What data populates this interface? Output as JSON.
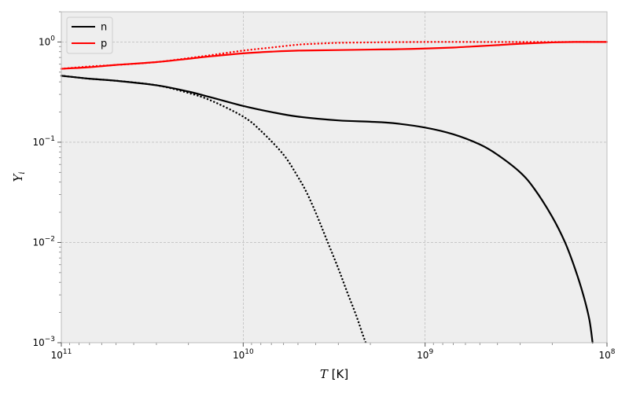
{
  "chart_data": {
    "type": "line",
    "title": "",
    "xlabel": "T",
    "xlabel_unit": "[K]",
    "ylabel": "Y",
    "ylabel_sub": "i",
    "xscale": "log",
    "yscale": "log",
    "x_reversed": true,
    "xlim": [
      100000000000,
      100000000
    ],
    "ylim": [
      0.001,
      2
    ],
    "x_ticks": [
      {
        "value": 100000000000,
        "base": "10",
        "exp": "11"
      },
      {
        "value": 10000000000,
        "base": "10",
        "exp": "10"
      },
      {
        "value": 1000000000,
        "base": "10",
        "exp": "9"
      },
      {
        "value": 100000000,
        "base": "10",
        "exp": "8"
      }
    ],
    "y_ticks": [
      {
        "value": 0.001,
        "base": "10",
        "exp": "−3"
      },
      {
        "value": 0.01,
        "base": "10",
        "exp": "−2"
      },
      {
        "value": 0.1,
        "base": "10",
        "exp": "−1"
      },
      {
        "value": 1,
        "base": "10",
        "exp": "0"
      }
    ],
    "grid": true,
    "legend_position": "top-left",
    "colors": {
      "n": "#000000",
      "p": "#ff0000",
      "background": "#eeeeee",
      "grid": "#b0b0b0"
    },
    "series": [
      {
        "name": "n",
        "key": "n_solid",
        "style": "solid",
        "color": "#000000",
        "show_in_legend": true,
        "x": [
          100000000000.0,
          70000000000.0,
          50000000000.0,
          30000000000.0,
          20000000000.0,
          15000000000.0,
          10000000000.0,
          7000000000.0,
          5000000000.0,
          3000000000.0,
          2000000000.0,
          1500000000.0,
          1000000000.0,
          700000000.0,
          500000000.0,
          400000000.0,
          300000000.0,
          250000000.0,
          200000000.0,
          170000000.0,
          150000000.0,
          135000000.0,
          125000000.0,
          120000000.0
        ],
        "y": [
          0.46,
          0.43,
          0.41,
          0.37,
          0.32,
          0.28,
          0.23,
          0.2,
          0.18,
          0.165,
          0.16,
          0.155,
          0.14,
          0.12,
          0.095,
          0.075,
          0.05,
          0.034,
          0.018,
          0.01,
          0.0055,
          0.003,
          0.0017,
          0.001
        ]
      },
      {
        "name": "p",
        "key": "p_solid",
        "style": "solid",
        "color": "#ff0000",
        "show_in_legend": true,
        "x": [
          100000000000.0,
          70000000000.0,
          50000000000.0,
          30000000000.0,
          20000000000.0,
          15000000000.0,
          10000000000.0,
          7000000000.0,
          5000000000.0,
          3000000000.0,
          2000000000.0,
          1500000000.0,
          1000000000.0,
          700000000.0,
          500000000.0,
          400000000.0,
          300000000.0,
          200000000.0,
          150000000.0,
          100000000.0
        ],
        "y": [
          0.54,
          0.56,
          0.59,
          0.63,
          0.68,
          0.72,
          0.77,
          0.8,
          0.82,
          0.83,
          0.84,
          0.845,
          0.86,
          0.88,
          0.91,
          0.93,
          0.96,
          0.99,
          1.0,
          1.0
        ]
      },
      {
        "name": "n",
        "key": "n_dotted",
        "style": "dotted",
        "color": "#000000",
        "show_in_legend": false,
        "x": [
          100000000000.0,
          70000000000.0,
          50000000000.0,
          30000000000.0,
          20000000000.0,
          15000000000.0,
          10000000000.0,
          8000000000.0,
          6000000000.0,
          5000000000.0,
          4500000000.0,
          4000000000.0,
          3500000000.0,
          3000000000.0,
          2700000000.0,
          2400000000.0,
          2200000000.0,
          2120000000.0
        ],
        "y": [
          0.46,
          0.43,
          0.41,
          0.37,
          0.31,
          0.26,
          0.18,
          0.13,
          0.075,
          0.045,
          0.032,
          0.02,
          0.011,
          0.0055,
          0.0033,
          0.0019,
          0.0012,
          0.001
        ]
      },
      {
        "name": "p",
        "key": "p_dotted",
        "style": "dotted",
        "color": "#ff0000",
        "show_in_legend": false,
        "x": [
          100000000000.0,
          70000000000.0,
          50000000000.0,
          30000000000.0,
          20000000000.0,
          15000000000.0,
          10000000000.0,
          7000000000.0,
          5000000000.0,
          4000000000.0,
          3000000000.0,
          2000000000.0,
          1000000000.0,
          500000000.0,
          300000000.0,
          200000000.0,
          150000000.0,
          100000000.0
        ],
        "y": [
          0.54,
          0.57,
          0.59,
          0.63,
          0.69,
          0.74,
          0.82,
          0.88,
          0.94,
          0.96,
          0.98,
          0.99,
          1.0,
          1.0,
          1.0,
          1.0,
          1.0,
          1.0
        ]
      }
    ]
  }
}
